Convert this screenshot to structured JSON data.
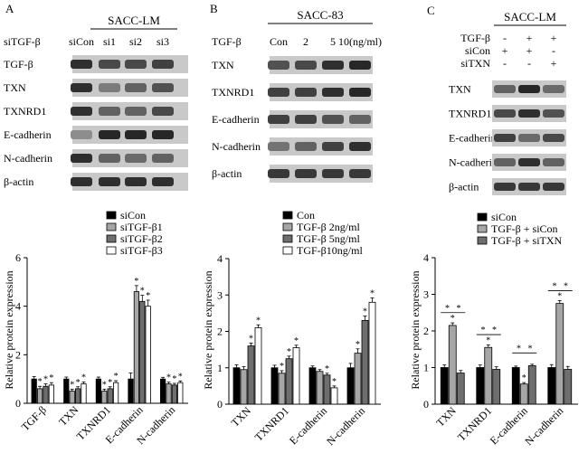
{
  "panels": [
    {
      "letter": "A",
      "cell_line": "SACC-LM",
      "treatment_label": "siTGF-β",
      "lanes": [
        "siCon",
        "si1",
        "si2",
        "si3"
      ],
      "blot_rows": [
        "TGF-β",
        "TXN",
        "TXNRD1",
        "E-cadherin",
        "N-cadherin",
        "β-actin"
      ],
      "band_intensity": [
        [
          0.9,
          0.75,
          0.75,
          0.8
        ],
        [
          0.9,
          0.45,
          0.6,
          0.7
        ],
        [
          0.9,
          0.6,
          0.6,
          0.75
        ],
        [
          0.35,
          0.95,
          0.95,
          0.95
        ],
        [
          0.9,
          0.6,
          0.55,
          0.6
        ],
        [
          0.9,
          0.9,
          0.9,
          0.9
        ]
      ]
    },
    {
      "letter": "B",
      "cell_line": "SACC-83",
      "treatment_label": "TGF-β",
      "lanes": [
        "Con",
        "2",
        "5",
        "10(ng/ml)"
      ],
      "blot_rows": [
        "TXN",
        "TXNRD1",
        "E-cadherin",
        "N-cadherin",
        "β-actin"
      ],
      "band_intensity": [
        [
          0.7,
          0.75,
          0.9,
          0.95
        ],
        [
          0.8,
          0.8,
          0.9,
          0.95
        ],
        [
          0.8,
          0.8,
          0.7,
          0.6
        ],
        [
          0.5,
          0.6,
          0.8,
          0.9
        ],
        [
          0.85,
          0.85,
          0.85,
          0.85
        ]
      ]
    },
    {
      "letter": "C",
      "cell_line": "SACC-LM",
      "condition_rows": [
        {
          "label": "TGF-β",
          "marks": [
            "-",
            "+",
            "+"
          ]
        },
        {
          "label": "siCon",
          "marks": [
            "+",
            "+",
            "-"
          ]
        },
        {
          "label": "siTXN",
          "marks": [
            "-",
            "-",
            "+"
          ]
        }
      ],
      "blot_rows": [
        "TXN",
        "TXNRD1",
        "E-cadherin",
        "N-cadherin",
        "β-actin"
      ],
      "band_intensity": [
        [
          0.6,
          0.95,
          0.55
        ],
        [
          0.75,
          0.9,
          0.7
        ],
        [
          0.8,
          0.55,
          0.75
        ],
        [
          0.6,
          0.9,
          0.6
        ],
        [
          0.85,
          0.85,
          0.85
        ]
      ]
    }
  ],
  "colors": {
    "black": "#000000",
    "light_gray": "#a6a6a6",
    "dark_gray": "#6e6e6e",
    "white": "#ffffff"
  },
  "chart_data": [
    {
      "type": "bar",
      "ylabel": "Relative protein expression",
      "ylim": [
        0,
        6
      ],
      "yticks": [
        "0",
        "2",
        "4",
        "6"
      ],
      "categories": [
        "TGF-β",
        "TXN",
        "TXNRD1",
        "E-cadherin",
        "N-cadherin"
      ],
      "series": [
        {
          "name": "siCon",
          "color": "#000000",
          "values": [
            1.0,
            1.0,
            1.0,
            1.0,
            1.0
          ]
        },
        {
          "name": "siTGF-β1",
          "color": "#a6a6a6",
          "values": [
            0.6,
            0.5,
            0.5,
            4.6,
            0.8
          ]
        },
        {
          "name": "siTGF-β2",
          "color": "#6e6e6e",
          "values": [
            0.7,
            0.6,
            0.6,
            4.2,
            0.75
          ]
        },
        {
          "name": "siTGF-β3",
          "color": "#ffffff",
          "values": [
            0.75,
            0.8,
            0.85,
            4.0,
            0.85
          ]
        }
      ],
      "errors": [
        0.1,
        0.08,
        0.08,
        0.25,
        0.07
      ],
      "stars": [
        "*",
        "*",
        "*",
        "*",
        "*",
        "*"
      ]
    },
    {
      "type": "bar",
      "ylabel": "Relative protein expression",
      "ylim": [
        0,
        4
      ],
      "yticks": [
        "0",
        "1",
        "2",
        "3",
        "4"
      ],
      "categories": [
        "TXN",
        "TXNRD1",
        "E-cadherin",
        "N-cadherin"
      ],
      "series": [
        {
          "name": "Con",
          "color": "#000000",
          "values": [
            1.0,
            1.0,
            1.0,
            1.0
          ]
        },
        {
          "name": "TGF-β 2ng/ml",
          "color": "#a6a6a6",
          "values": [
            0.95,
            0.85,
            0.9,
            1.4
          ]
        },
        {
          "name": "TGF-β 5ng/ml",
          "color": "#6e6e6e",
          "values": [
            1.6,
            1.25,
            0.8,
            2.3
          ]
        },
        {
          "name": "TGF-β10ng/ml",
          "color": "#ffffff",
          "values": [
            2.1,
            1.55,
            0.45,
            2.8
          ]
        }
      ],
      "errors": [
        0.08,
        0.07,
        0.05,
        0.12
      ],
      "stars": [
        "*",
        "*"
      ]
    },
    {
      "type": "bar",
      "ylabel": "Relative protein expression",
      "ylim": [
        0,
        4
      ],
      "yticks": [
        "0",
        "1",
        "2",
        "3",
        "4"
      ],
      "categories": [
        "TXN",
        "TXNRD1",
        "E-cadherin",
        "N-cadherin"
      ],
      "series": [
        {
          "name": "siCon",
          "color": "#000000",
          "values": [
            1.0,
            1.0,
            1.0,
            1.0
          ]
        },
        {
          "name": "TGF-β + siCon",
          "color": "#a6a6a6",
          "values": [
            2.15,
            1.55,
            0.55,
            2.75
          ]
        },
        {
          "name": "TGF-β + siTXN",
          "color": "#6e6e6e",
          "values": [
            0.85,
            0.95,
            1.05,
            0.95
          ]
        }
      ],
      "errors": [
        0.07,
        0.07,
        0.04,
        0.08
      ],
      "stars": [
        "*",
        "*"
      ]
    }
  ]
}
